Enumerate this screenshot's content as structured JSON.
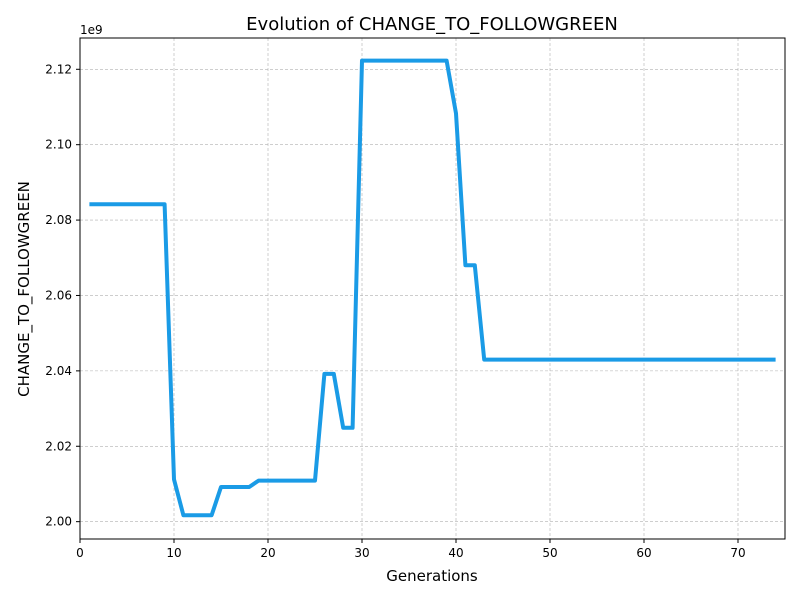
{
  "chart_data": {
    "type": "line",
    "title": "Evolution of CHANGE_TO_FOLLOWGREEN",
    "xlabel": "Generations",
    "ylabel": "CHANGE_TO_FOLLOWGREEN",
    "offset_text": "1e9",
    "xlim": [
      0,
      75
    ],
    "ylim": [
      1995400000,
      2128300000
    ],
    "x_ticks": [
      0,
      10,
      20,
      30,
      40,
      50,
      60,
      70
    ],
    "x_tick_labels": [
      "0",
      "10",
      "20",
      "30",
      "40",
      "50",
      "60",
      "70"
    ],
    "y_ticks": [
      2000000000,
      2020000000,
      2040000000,
      2060000000,
      2080000000,
      2100000000,
      2120000000
    ],
    "y_tick_labels": [
      "2.00",
      "2.02",
      "2.04",
      "2.06",
      "2.08",
      "2.10",
      "2.12"
    ],
    "grid": true,
    "color": "#1a9be6",
    "series": [
      {
        "x": [
          1,
          2,
          3,
          4,
          5,
          6,
          7,
          8,
          9,
          10,
          11,
          12,
          13,
          14,
          15,
          16,
          17,
          18,
          19,
          20,
          21,
          22,
          23,
          24,
          25,
          26,
          27,
          28,
          29,
          30,
          31,
          32,
          33,
          34,
          35,
          36,
          37,
          38,
          39,
          40,
          41,
          42,
          43,
          44,
          45,
          46,
          47,
          48,
          49,
          50,
          51,
          52,
          53,
          54,
          55,
          56,
          57,
          58,
          59,
          60,
          61,
          62,
          63,
          64,
          65,
          66,
          67,
          68,
          69,
          70,
          71,
          72,
          73,
          74
        ],
        "values": [
          2084200000,
          2084200000,
          2084200000,
          2084200000,
          2084200000,
          2084200000,
          2084200000,
          2084200000,
          2084200000,
          2011200000,
          2001700000,
          2001700000,
          2001700000,
          2001700000,
          2009200000,
          2009200000,
          2009200000,
          2009200000,
          2010900000,
          2010900000,
          2010900000,
          2010900000,
          2010900000,
          2010900000,
          2010900000,
          2039200000,
          2039200000,
          2024900000,
          2024900000,
          2122300000,
          2122300000,
          2122300000,
          2122300000,
          2122300000,
          2122300000,
          2122300000,
          2122300000,
          2122300000,
          2122300000,
          2108300000,
          2068000000,
          2068000000,
          2043000000,
          2043000000,
          2043000000,
          2043000000,
          2043000000,
          2043000000,
          2043000000,
          2043000000,
          2043000000,
          2043000000,
          2043000000,
          2043000000,
          2043000000,
          2043000000,
          2043000000,
          2043000000,
          2043000000,
          2043000000,
          2043000000,
          2043000000,
          2043000000,
          2043000000,
          2043000000,
          2043000000,
          2043000000,
          2043000000,
          2043000000,
          2043000000,
          2043000000,
          2043000000,
          2043000000,
          2043000000
        ]
      }
    ]
  }
}
